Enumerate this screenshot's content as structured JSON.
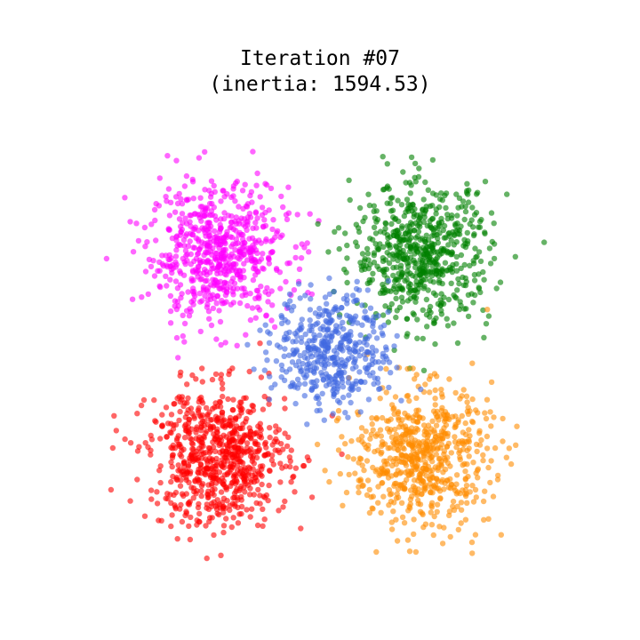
{
  "chart_data": {
    "type": "scatter",
    "title": "Iteration #07",
    "subtitle": "(inertia: 1594.53)",
    "xlabel": "",
    "ylabel": "",
    "axes_visible": false,
    "grid": false,
    "legend": "none",
    "xlim": [
      -13,
      13
    ],
    "ylim": [
      -13,
      13
    ],
    "point_alpha": 0.6,
    "series": [
      {
        "color": "#ff00ff",
        "center": [
          -5.6,
          5.6
        ],
        "count": 650,
        "spread": 1.9
      },
      {
        "color": "#008000",
        "center": [
          5.6,
          5.6
        ],
        "count": 650,
        "spread": 1.9
      },
      {
        "color": "#ff0000",
        "center": [
          -5.6,
          -5.6
        ],
        "count": 750,
        "spread": 1.9
      },
      {
        "color": "#ff8c00",
        "center": [
          5.6,
          -5.6
        ],
        "count": 650,
        "spread": 1.9
      },
      {
        "color": "#4169e1",
        "center": [
          0.7,
          0.3
        ],
        "count": 450,
        "spread": 1.6
      }
    ]
  }
}
